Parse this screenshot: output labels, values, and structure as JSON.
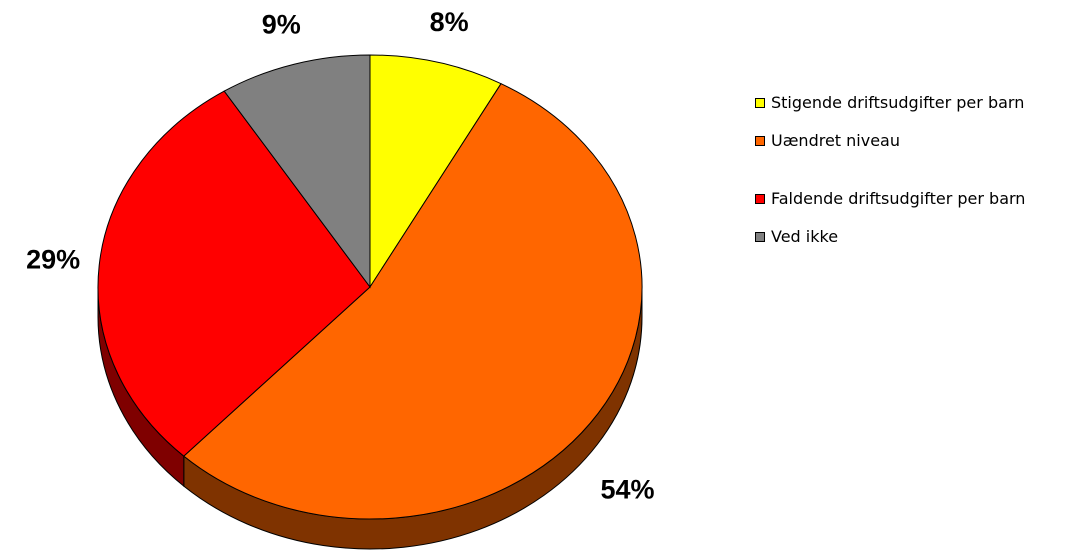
{
  "chart_data": {
    "type": "pie",
    "categories": [
      "Stigende driftsudgifter per barn",
      "Uændret niveau",
      "Faldende driftsudgifter per barn",
      "Ved ikke"
    ],
    "values": [
      8,
      54,
      29,
      9
    ],
    "value_labels": [
      "8%",
      "54%",
      "29%",
      "9%"
    ],
    "colors": [
      "#ffff00",
      "#ff6600",
      "#ff0000",
      "#808080"
    ]
  }
}
